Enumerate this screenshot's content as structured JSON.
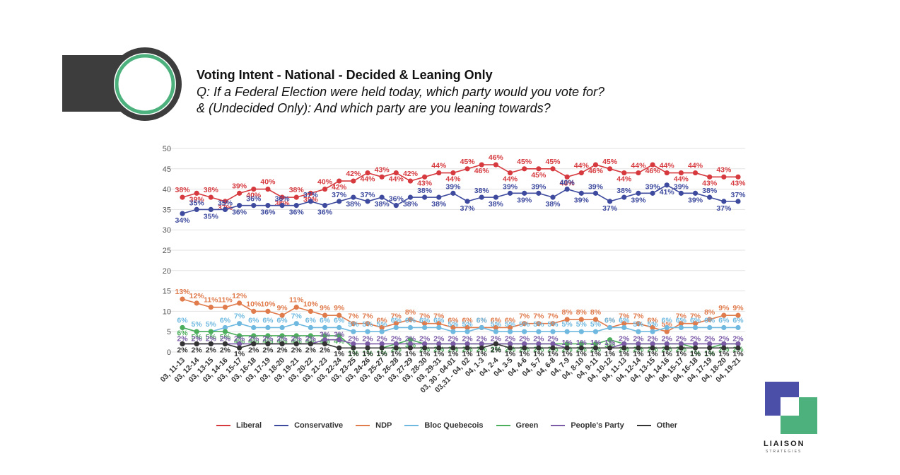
{
  "header": {
    "title": "Voting Intent - National - Decided & Leaning Only",
    "question_line1": "Q: If a Federal Election were held today, which party would you vote for?",
    "question_line2": "& (Undecided Only): And which party are you leaning towards?"
  },
  "logo": {
    "name": "LIAISON",
    "sub": "STRATEGIES"
  },
  "colors": {
    "accent_green": "#4cb17c",
    "dark": "#3d3d3d",
    "logo_blue": "#4b4fa8",
    "logo_green": "#4cb17c"
  },
  "chart_data": {
    "type": "line",
    "ylim": [
      0,
      50
    ],
    "yticks": [
      0,
      5,
      10,
      15,
      20,
      25,
      30,
      35,
      40,
      45,
      50
    ],
    "grid": true,
    "legend_position": "bottom",
    "categories": [
      "03, 11-13",
      "03, 12-14",
      "03, 13-15",
      "03, 14-16",
      "03, 15-17",
      "03, 16-18",
      "03, 17-19",
      "03, 18-20",
      "03, 19-21",
      "03, 20-22",
      "03, 21-23",
      "03, 22-24",
      "03, 23-25",
      "03, 24-26",
      "03, 25-27",
      "03, 26-28",
      "03, 27-29",
      "03, 28-30",
      "03, 29-31",
      "03, 30 - 04-01",
      "03,31 - 04, 02",
      "04, 1-3",
      "04, 2-4",
      "04, 3-5",
      "04, 4-6",
      "04, 5-7",
      "04, 6-8",
      "04, 7-9",
      "04, 8-10",
      "04, 9-11",
      "04, 10-12",
      "04, 11-13",
      "04, 12-14",
      "04, 13-15",
      "04, 14-16",
      "04, 15-17",
      "04, 16-18",
      "04, 17-19",
      "04, 18-20",
      "04, 19-21"
    ],
    "series": [
      {
        "name": "Liberal",
        "color": "#d63a3f",
        "values": [
          38,
          39,
          38,
          37,
          39,
          40,
          40,
          38,
          38,
          39,
          40,
          42,
          42,
          44,
          43,
          44,
          42,
          43,
          44,
          44,
          45,
          46,
          46,
          44,
          45,
          45,
          45,
          43,
          44,
          46,
          45,
          44,
          44,
          46,
          44,
          44,
          44,
          43,
          43,
          43
        ]
      },
      {
        "name": "Conservative",
        "color": "#3d4a9e",
        "values": [
          34,
          35,
          35,
          35,
          36,
          36,
          36,
          36,
          36,
          37,
          36,
          37,
          38,
          37,
          38,
          36,
          38,
          38,
          38,
          39,
          37,
          38,
          38,
          39,
          39,
          39,
          38,
          40,
          39,
          39,
          37,
          38,
          39,
          39,
          41,
          39,
          39,
          38,
          37,
          37
        ]
      },
      {
        "name": "NDP",
        "color": "#e07b4c",
        "values": [
          13,
          12,
          11,
          11,
          12,
          10,
          10,
          9,
          11,
          10,
          9,
          9,
          7,
          7,
          6,
          7,
          8,
          7,
          7,
          6,
          6,
          6,
          6,
          6,
          7,
          7,
          7,
          8,
          8,
          8,
          6,
          7,
          7,
          6,
          5,
          7,
          7,
          8,
          9,
          9
        ]
      },
      {
        "name": "Bloc Quebecois",
        "color": "#6fb9e0",
        "values": [
          6,
          5,
          5,
          6,
          7,
          6,
          6,
          6,
          7,
          6,
          6,
          6,
          5,
          5,
          5,
          6,
          6,
          6,
          6,
          5,
          5,
          6,
          5,
          5,
          5,
          5,
          5,
          5,
          5,
          5,
          6,
          6,
          5,
          5,
          6,
          6,
          6,
          6,
          6,
          6
        ]
      },
      {
        "name": "Green",
        "color": "#4cae5b",
        "values": [
          6,
          5,
          5,
          5,
          4,
          4,
          4,
          4,
          4,
          4,
          4,
          4,
          1,
          1,
          1,
          2,
          3,
          2,
          2,
          2,
          2,
          2,
          2,
          2,
          2,
          2,
          2,
          2,
          2,
          2,
          3,
          2,
          2,
          2,
          2,
          2,
          1,
          1,
          2,
          2
        ]
      },
      {
        "name": "People's Party",
        "color": "#7b5aa6",
        "values": [
          2,
          2,
          2,
          2,
          2,
          2,
          2,
          2,
          2,
          2,
          3,
          3,
          2,
          2,
          2,
          2,
          2,
          2,
          2,
          2,
          2,
          2,
          2,
          2,
          2,
          2,
          2,
          1,
          1,
          1,
          1,
          2,
          2,
          2,
          2,
          2,
          2,
          2,
          2,
          2
        ]
      },
      {
        "name": "Other",
        "color": "#333333",
        "values": [
          2,
          2,
          2,
          2,
          1,
          2,
          2,
          2,
          2,
          2,
          2,
          1,
          1,
          1,
          1,
          1,
          1,
          1,
          1,
          1,
          1,
          1,
          2,
          1,
          1,
          1,
          1,
          1,
          1,
          1,
          1,
          1,
          1,
          1,
          1,
          1,
          1,
          1,
          1,
          1
        ]
      }
    ]
  }
}
